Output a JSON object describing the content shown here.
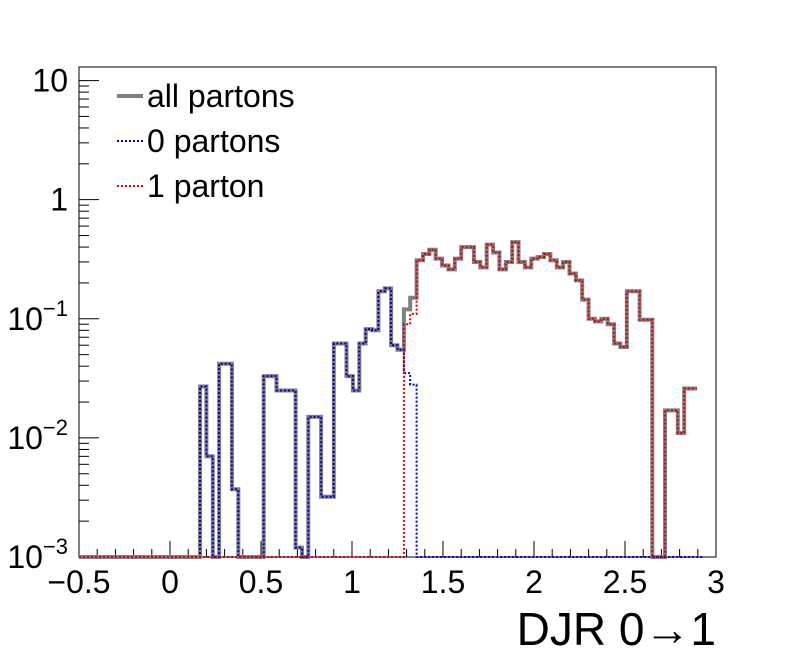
{
  "chart_data": {
    "type": "line",
    "xlabel": "DJR 0→1",
    "ylabel": "",
    "xlim": [
      -0.5,
      3.0
    ],
    "ylim": [
      0.001,
      13
    ],
    "yscale": "log",
    "grid": false,
    "legend_position": "top-left",
    "x_tick_labels": [
      "−0.5",
      "0",
      "0.5",
      "1",
      "1.5",
      "2",
      "2.5",
      "3"
    ],
    "x_tick_values": [
      -0.5,
      0,
      0.5,
      1,
      1.5,
      2,
      2.5,
      3
    ],
    "y_ticks": [
      {
        "value": 0.001,
        "base": "10",
        "exp": "−3"
      },
      {
        "value": 0.01,
        "base": "10",
        "exp": "−2"
      },
      {
        "value": 0.1,
        "base": "10",
        "exp": "−1"
      },
      {
        "value": 1,
        "base": "1",
        "exp": ""
      },
      {
        "value": 10,
        "base": "10",
        "exp": ""
      }
    ],
    "bin_edges_start": -0.5,
    "bin_width": 0.035,
    "series": [
      {
        "name": "all partons",
        "color": "#808080",
        "style": "solid",
        "values": [
          0.001,
          0.001,
          0.001,
          0.001,
          0.001,
          0.001,
          0.001,
          0.001,
          0.001,
          0.001,
          0.001,
          0.001,
          0.001,
          0.001,
          0.001,
          0.001,
          0.001,
          0.001,
          0.001,
          0.027,
          0.007,
          0.001,
          0.042,
          0.042,
          0.0037,
          0.001,
          0.001,
          0.001,
          0.001,
          0.033,
          0.033,
          0.025,
          0.025,
          0.025,
          0.0012,
          0.001,
          0.015,
          0.015,
          0.0032,
          0.0032,
          0.062,
          0.062,
          0.033,
          0.025,
          0.062,
          0.082,
          0.08,
          0.17,
          0.18,
          0.06,
          0.055,
          0.12,
          0.15,
          0.31,
          0.35,
          0.38,
          0.32,
          0.28,
          0.26,
          0.32,
          0.4,
          0.4,
          0.3,
          0.27,
          0.42,
          0.36,
          0.26,
          0.3,
          0.44,
          0.3,
          0.27,
          0.32,
          0.33,
          0.35,
          0.31,
          0.27,
          0.3,
          0.24,
          0.21,
          0.145,
          0.1,
          0.095,
          0.1,
          0.09,
          0.062,
          0.058,
          0.17,
          0.17,
          0.098,
          0.098,
          0.001,
          0.001,
          0.017,
          0.017,
          0.011,
          0.026,
          0.026
        ]
      },
      {
        "name": "0 partons",
        "color": "#0000cc",
        "style": "dotted",
        "values": [
          0.001,
          0.001,
          0.001,
          0.001,
          0.001,
          0.001,
          0.001,
          0.001,
          0.001,
          0.001,
          0.001,
          0.001,
          0.001,
          0.001,
          0.001,
          0.001,
          0.001,
          0.001,
          0.001,
          0.027,
          0.007,
          0.001,
          0.042,
          0.042,
          0.0037,
          0.001,
          0.001,
          0.001,
          0.001,
          0.033,
          0.033,
          0.025,
          0.025,
          0.025,
          0.0012,
          0.001,
          0.015,
          0.015,
          0.0032,
          0.0032,
          0.062,
          0.062,
          0.033,
          0.025,
          0.062,
          0.082,
          0.08,
          0.17,
          0.18,
          0.06,
          0.055,
          0.035,
          0.028,
          0.001,
          0.001,
          0.001,
          0.001,
          0.001,
          0.001,
          0.001,
          0.001,
          0.001,
          0.001,
          0.001,
          0.001,
          0.001,
          0.001,
          0.001,
          0.001,
          0.001,
          0.001,
          0.001,
          0.001,
          0.001,
          0.001,
          0.001,
          0.001,
          0.001,
          0.001,
          0.001,
          0.001,
          0.001,
          0.001,
          0.001,
          0.001,
          0.001,
          0.001,
          0.001,
          0.001,
          0.001,
          0.001,
          0.001,
          0.001,
          0.001,
          0.001,
          0.001,
          0.001,
          0.001
        ]
      },
      {
        "name": "1 parton",
        "color": "#dd0000",
        "style": "dotted",
        "values": [
          0.001,
          0.001,
          0.001,
          0.001,
          0.001,
          0.001,
          0.001,
          0.001,
          0.001,
          0.001,
          0.001,
          0.001,
          0.001,
          0.001,
          0.001,
          0.001,
          0.001,
          0.001,
          0.001,
          0.001,
          0.001,
          0.001,
          0.001,
          0.001,
          0.001,
          0.001,
          0.001,
          0.001,
          0.001,
          0.001,
          0.001,
          0.001,
          0.001,
          0.001,
          0.001,
          0.001,
          0.001,
          0.001,
          0.001,
          0.001,
          0.001,
          0.001,
          0.001,
          0.001,
          0.001,
          0.001,
          0.001,
          0.001,
          0.001,
          0.001,
          0.001,
          0.09,
          0.11,
          0.31,
          0.35,
          0.38,
          0.32,
          0.28,
          0.26,
          0.32,
          0.4,
          0.4,
          0.3,
          0.27,
          0.42,
          0.36,
          0.26,
          0.3,
          0.44,
          0.3,
          0.27,
          0.32,
          0.33,
          0.35,
          0.31,
          0.27,
          0.3,
          0.24,
          0.21,
          0.145,
          0.1,
          0.095,
          0.1,
          0.09,
          0.062,
          0.058,
          0.17,
          0.17,
          0.098,
          0.098,
          0.001,
          0.001,
          0.017,
          0.017,
          0.011,
          0.026,
          0.026
        ]
      }
    ]
  }
}
